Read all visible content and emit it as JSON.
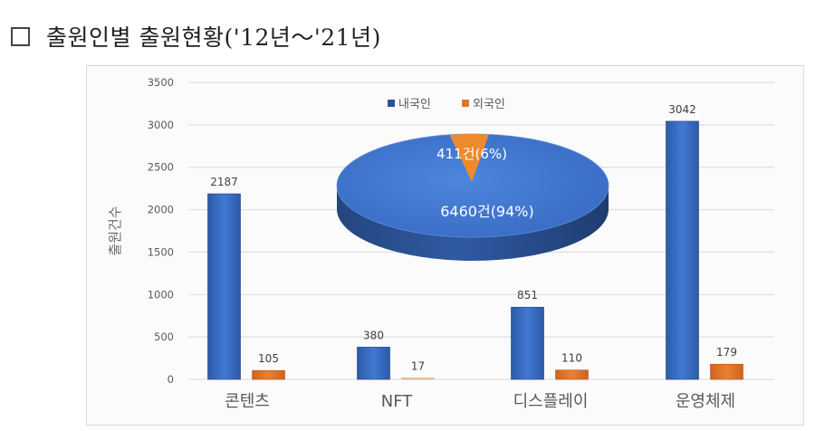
{
  "title": {
    "checkbox_glyph": "☐",
    "text": "출원인별 출원현황('12년～'21년)"
  },
  "chart_data": [
    {
      "type": "bar",
      "title": "",
      "xlabel": "",
      "ylabel": "출원건수",
      "ylim": [
        0,
        3500
      ],
      "yticks": [
        0,
        500,
        1000,
        1500,
        2000,
        2500,
        3000,
        3500
      ],
      "grid": true,
      "categories": [
        "콘텐츠",
        "NFT",
        "디스플레이",
        "운영체제"
      ],
      "series": [
        {
          "name": "내국인",
          "color": "#3a6bc4",
          "values": [
            2187,
            380,
            851,
            3042
          ]
        },
        {
          "name": "외국인",
          "color": "#e07428",
          "values": [
            105,
            17,
            110,
            179
          ]
        }
      ],
      "data_labels": true,
      "legend_position": "top-center"
    },
    {
      "type": "pie",
      "style": "3d",
      "slices": [
        {
          "name": "내국인",
          "value": 6460,
          "percent": 94,
          "label": "6460건(94%)",
          "color": "#3a6bc4"
        },
        {
          "name": "외국인",
          "value": 411,
          "percent": 6,
          "label": "411건(6%)",
          "color": "#ee8a2e"
        }
      ]
    }
  ],
  "legend": {
    "items": [
      {
        "label": "내국인",
        "color": "#2f4f9e"
      },
      {
        "label": "외국인",
        "color": "#e07428"
      }
    ]
  }
}
